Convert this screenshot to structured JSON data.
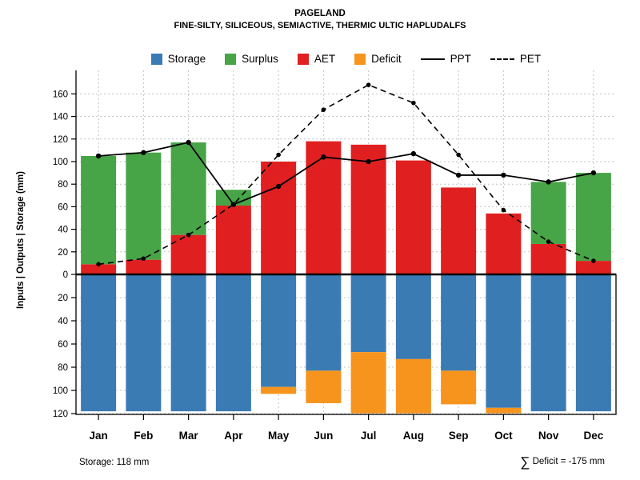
{
  "title": "PAGELAND",
  "subtitle": "FINE-SILTY, SILICEOUS, SEMIACTIVE, THERMIC ULTIC HAPLUDALFS",
  "ylabel": "Inputs | Outputs | Storage   (mm)",
  "legend": [
    {
      "label": "Storage",
      "color": "#3b7bb4",
      "type": "box"
    },
    {
      "label": "Surplus",
      "color": "#47a447",
      "type": "box"
    },
    {
      "label": "AET",
      "color": "#e02020",
      "type": "box"
    },
    {
      "label": "Deficit",
      "color": "#f7941d",
      "type": "box"
    },
    {
      "label": "PPT",
      "color": "#000000",
      "type": "line-solid"
    },
    {
      "label": "PET",
      "color": "#000000",
      "type": "line-dashed"
    }
  ],
  "footer": {
    "left": "Storage: 118 mm",
    "sum_symbol": "∑",
    "right": " Deficit = -175 mm"
  },
  "chart_data": {
    "type": "bar+line water-balance (upper bars stacked up, storage/deficit mirrored down)",
    "categories": [
      "Jan",
      "Feb",
      "Mar",
      "Apr",
      "May",
      "Jun",
      "Jul",
      "Aug",
      "Sep",
      "Oct",
      "Nov",
      "Dec"
    ],
    "series": [
      {
        "name": "AET",
        "type": "bar-up",
        "color": "#e02020",
        "values": [
          9,
          13,
          35,
          61,
          100,
          118,
          115,
          101,
          77,
          54,
          27,
          12
        ]
      },
      {
        "name": "Surplus",
        "type": "bar-up-stacked",
        "color": "#47a447",
        "values": [
          96,
          95,
          82,
          14,
          0,
          0,
          0,
          0,
          0,
          0,
          55,
          78
        ]
      },
      {
        "name": "Storage",
        "type": "bar-down",
        "color": "#3b7bb4",
        "values": [
          118,
          118,
          118,
          118,
          97,
          83,
          67,
          73,
          83,
          115,
          118,
          118
        ]
      },
      {
        "name": "Deficit",
        "type": "bar-down-stacked",
        "color": "#f7941d",
        "values": [
          0,
          0,
          0,
          0,
          6,
          28,
          53,
          51,
          29,
          8,
          0,
          0
        ]
      },
      {
        "name": "PPT",
        "type": "line",
        "style": "solid",
        "color": "#000000",
        "marker": "circle",
        "values": [
          105,
          108,
          117,
          62,
          78,
          104,
          100,
          107,
          88,
          88,
          82,
          90
        ]
      },
      {
        "name": "PET",
        "type": "line",
        "style": "dashed",
        "color": "#000000",
        "marker": "circle",
        "values": [
          9,
          14,
          35,
          62,
          106,
          146,
          168,
          152,
          106,
          57,
          29,
          12
        ]
      }
    ],
    "y_upper_ticks": [
      0,
      20,
      40,
      60,
      80,
      100,
      120,
      140,
      160
    ],
    "y_lower_ticks": [
      20,
      40,
      60,
      80,
      100,
      120
    ],
    "ylim_upper": [
      0,
      178
    ],
    "ylim_lower": [
      0,
      122
    ],
    "grid": true,
    "legend_position": "top",
    "storage_capacity_mm": 118,
    "deficit_total_mm": -175
  }
}
